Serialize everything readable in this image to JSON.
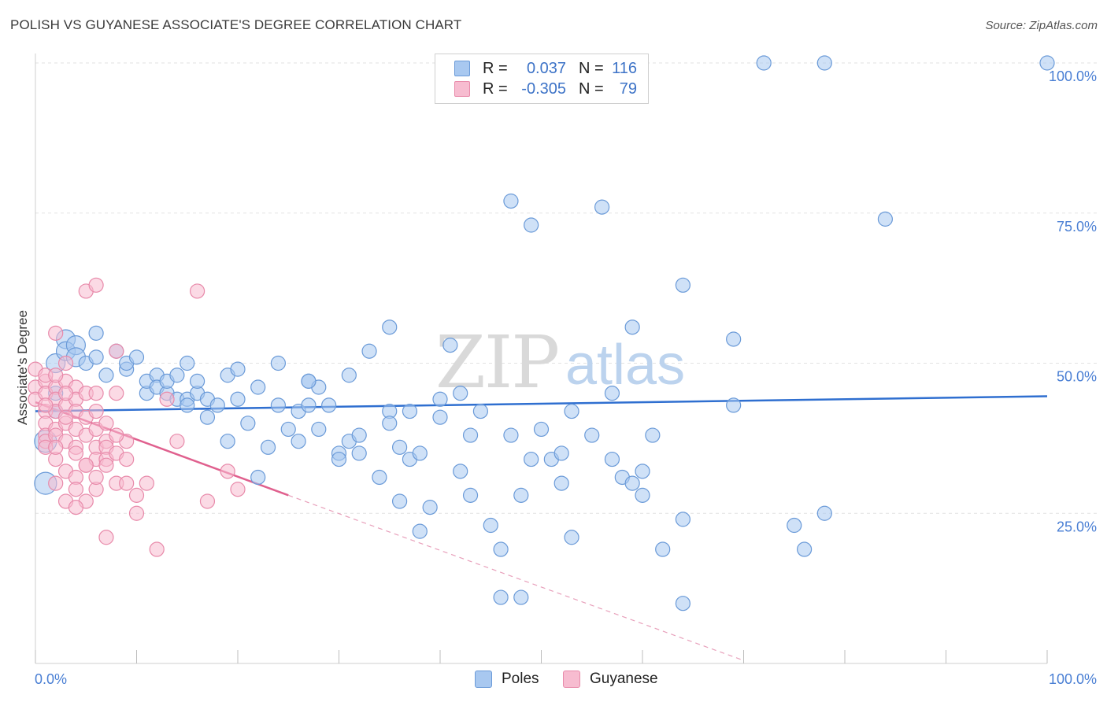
{
  "title": "POLISH VS GUYANESE ASSOCIATE'S DEGREE CORRELATION CHART",
  "source": "Source: ZipAtlas.com",
  "watermark": {
    "zip": "ZIP",
    "atlas": "atlas"
  },
  "legend": {
    "rows": [
      {
        "label": "R =",
        "r": "0.037",
        "n_label": "N =",
        "n": "116",
        "color": "#a8c8f0",
        "border": "#6a9ad8"
      },
      {
        "label": "R =",
        "r": "-0.305",
        "n_label": "N =",
        "n": "79",
        "color": "#f7bcd0",
        "border": "#e88aaa"
      }
    ]
  },
  "bottom_legend": [
    {
      "label": "Poles",
      "color": "#a8c8f0",
      "border": "#6a9ad8"
    },
    {
      "label": "Guyanese",
      "color": "#f7bcd0",
      "border": "#e88aaa"
    }
  ],
  "chart_data": {
    "type": "scatter",
    "title": "POLISH VS GUYANESE ASSOCIATE'S DEGREE CORRELATION CHART",
    "xlabel": "",
    "ylabel": "Associate's Degree",
    "xlim": [
      0,
      100
    ],
    "ylim": [
      0,
      100
    ],
    "x_tick_labels": [
      "0.0%",
      "100.0%"
    ],
    "y_ticks": [
      25,
      50,
      75,
      100
    ],
    "y_tick_labels": [
      "25.0%",
      "50.0%",
      "75.0%",
      "100.0%"
    ],
    "grid": true,
    "series": [
      {
        "name": "Poles",
        "color": "#6a9ad8",
        "fill": "#a8c8f0",
        "r": 0.037,
        "n": 116,
        "trend": {
          "x0": 0,
          "y0": 42.0,
          "x1": 100,
          "y1": 44.5
        },
        "points": [
          [
            1,
            30
          ],
          [
            1,
            37
          ],
          [
            2,
            42
          ],
          [
            2,
            45
          ],
          [
            2,
            50
          ],
          [
            3,
            54
          ],
          [
            3,
            52
          ],
          [
            4,
            53
          ],
          [
            4,
            51
          ],
          [
            5,
            50
          ],
          [
            6,
            51
          ],
          [
            7,
            48
          ],
          [
            8,
            52
          ],
          [
            9,
            49
          ],
          [
            9,
            50
          ],
          [
            10,
            51
          ],
          [
            11,
            45
          ],
          [
            11,
            47
          ],
          [
            12,
            48
          ],
          [
            12,
            46
          ],
          [
            13,
            45
          ],
          [
            13,
            47
          ],
          [
            14,
            48
          ],
          [
            14,
            44
          ],
          [
            15,
            44
          ],
          [
            15,
            43
          ],
          [
            16,
            45
          ],
          [
            16,
            47
          ],
          [
            17,
            44
          ],
          [
            17,
            41
          ],
          [
            18,
            43
          ],
          [
            19,
            37
          ],
          [
            19,
            48
          ],
          [
            20,
            49
          ],
          [
            20,
            44
          ],
          [
            21,
            40
          ],
          [
            22,
            46
          ],
          [
            22,
            31
          ],
          [
            23,
            36
          ],
          [
            24,
            50
          ],
          [
            24,
            43
          ],
          [
            25,
            39
          ],
          [
            26,
            42
          ],
          [
            26,
            37
          ],
          [
            27,
            47
          ],
          [
            27,
            43
          ],
          [
            28,
            46
          ],
          [
            28,
            39
          ],
          [
            29,
            43
          ],
          [
            30,
            35
          ],
          [
            30,
            34
          ],
          [
            31,
            37
          ],
          [
            31,
            48
          ],
          [
            32,
            38
          ],
          [
            32,
            35
          ],
          [
            33,
            52
          ],
          [
            34,
            31
          ],
          [
            35,
            42
          ],
          [
            35,
            40
          ],
          [
            35,
            56
          ],
          [
            36,
            36
          ],
          [
            36,
            27
          ],
          [
            37,
            34
          ],
          [
            37,
            42
          ],
          [
            38,
            35
          ],
          [
            38,
            22
          ],
          [
            39,
            26
          ],
          [
            40,
            41
          ],
          [
            41,
            53
          ],
          [
            42,
            45
          ],
          [
            42,
            32
          ],
          [
            43,
            38
          ],
          [
            43,
            28
          ],
          [
            44,
            42
          ],
          [
            45,
            23
          ],
          [
            46,
            19
          ],
          [
            46,
            11
          ],
          [
            47,
            77
          ],
          [
            47,
            38
          ],
          [
            48,
            28
          ],
          [
            48,
            11
          ],
          [
            49,
            34
          ],
          [
            49,
            73
          ],
          [
            50,
            39
          ],
          [
            51,
            34
          ],
          [
            52,
            35
          ],
          [
            53,
            42
          ],
          [
            53,
            21
          ],
          [
            55,
            38
          ],
          [
            56,
            76
          ],
          [
            57,
            45
          ],
          [
            57,
            34
          ],
          [
            58,
            31
          ],
          [
            59,
            30
          ],
          [
            59,
            56
          ],
          [
            60,
            28
          ],
          [
            60,
            32
          ],
          [
            61,
            38
          ],
          [
            62,
            19
          ],
          [
            64,
            63
          ],
          [
            64,
            24
          ],
          [
            64,
            10
          ],
          [
            69,
            54
          ],
          [
            69,
            43
          ],
          [
            72,
            100
          ],
          [
            75,
            23
          ],
          [
            76,
            19
          ],
          [
            78,
            25
          ],
          [
            78,
            100
          ],
          [
            84,
            74
          ],
          [
            100,
            100
          ],
          [
            6,
            55
          ],
          [
            15,
            50
          ],
          [
            27,
            47
          ],
          [
            40,
            44
          ],
          [
            52,
            30
          ]
        ]
      },
      {
        "name": "Guyanese",
        "color": "#e88aaa",
        "fill": "#f7bcd0",
        "r": -0.305,
        "n": 79,
        "trend": {
          "x0": 0,
          "y0": 43.5,
          "x1": 25,
          "y1": 28.0,
          "dash_to_x": 70,
          "dash_to_y": 0.5
        },
        "points": [
          [
            0,
            49
          ],
          [
            0,
            46
          ],
          [
            0,
            44
          ],
          [
            1,
            47
          ],
          [
            1,
            45
          ],
          [
            1,
            42
          ],
          [
            1,
            40
          ],
          [
            1,
            38
          ],
          [
            1,
            37
          ],
          [
            1,
            36
          ],
          [
            2,
            46
          ],
          [
            2,
            44
          ],
          [
            2,
            42
          ],
          [
            2,
            39
          ],
          [
            2,
            38
          ],
          [
            2,
            34
          ],
          [
            2,
            30
          ],
          [
            2,
            55
          ],
          [
            3,
            47
          ],
          [
            3,
            50
          ],
          [
            3,
            43
          ],
          [
            3,
            40
          ],
          [
            3,
            37
          ],
          [
            3,
            32
          ],
          [
            3,
            27
          ],
          [
            4,
            46
          ],
          [
            4,
            44
          ],
          [
            4,
            42
          ],
          [
            4,
            39
          ],
          [
            4,
            36
          ],
          [
            4,
            31
          ],
          [
            4,
            29
          ],
          [
            5,
            45
          ],
          [
            5,
            41
          ],
          [
            5,
            38
          ],
          [
            5,
            33
          ],
          [
            5,
            27
          ],
          [
            5,
            62
          ],
          [
            6,
            45
          ],
          [
            6,
            42
          ],
          [
            6,
            39
          ],
          [
            6,
            36
          ],
          [
            6,
            34
          ],
          [
            6,
            29
          ],
          [
            6,
            63
          ],
          [
            7,
            40
          ],
          [
            7,
            37
          ],
          [
            7,
            36
          ],
          [
            7,
            34
          ],
          [
            7,
            21
          ],
          [
            8,
            52
          ],
          [
            8,
            45
          ],
          [
            8,
            35
          ],
          [
            8,
            30
          ],
          [
            9,
            37
          ],
          [
            9,
            34
          ],
          [
            10,
            25
          ],
          [
            11,
            30
          ],
          [
            12,
            19
          ],
          [
            13,
            44
          ],
          [
            14,
            37
          ],
          [
            16,
            62
          ],
          [
            17,
            27
          ],
          [
            19,
            32
          ],
          [
            20,
            29
          ],
          [
            1,
            48
          ],
          [
            2,
            48
          ],
          [
            3,
            41
          ],
          [
            4,
            35
          ],
          [
            5,
            33
          ],
          [
            6,
            31
          ],
          [
            7,
            33
          ],
          [
            8,
            38
          ],
          [
            9,
            30
          ],
          [
            10,
            28
          ],
          [
            1,
            43
          ],
          [
            2,
            36
          ],
          [
            3,
            45
          ],
          [
            4,
            26
          ]
        ]
      }
    ]
  }
}
